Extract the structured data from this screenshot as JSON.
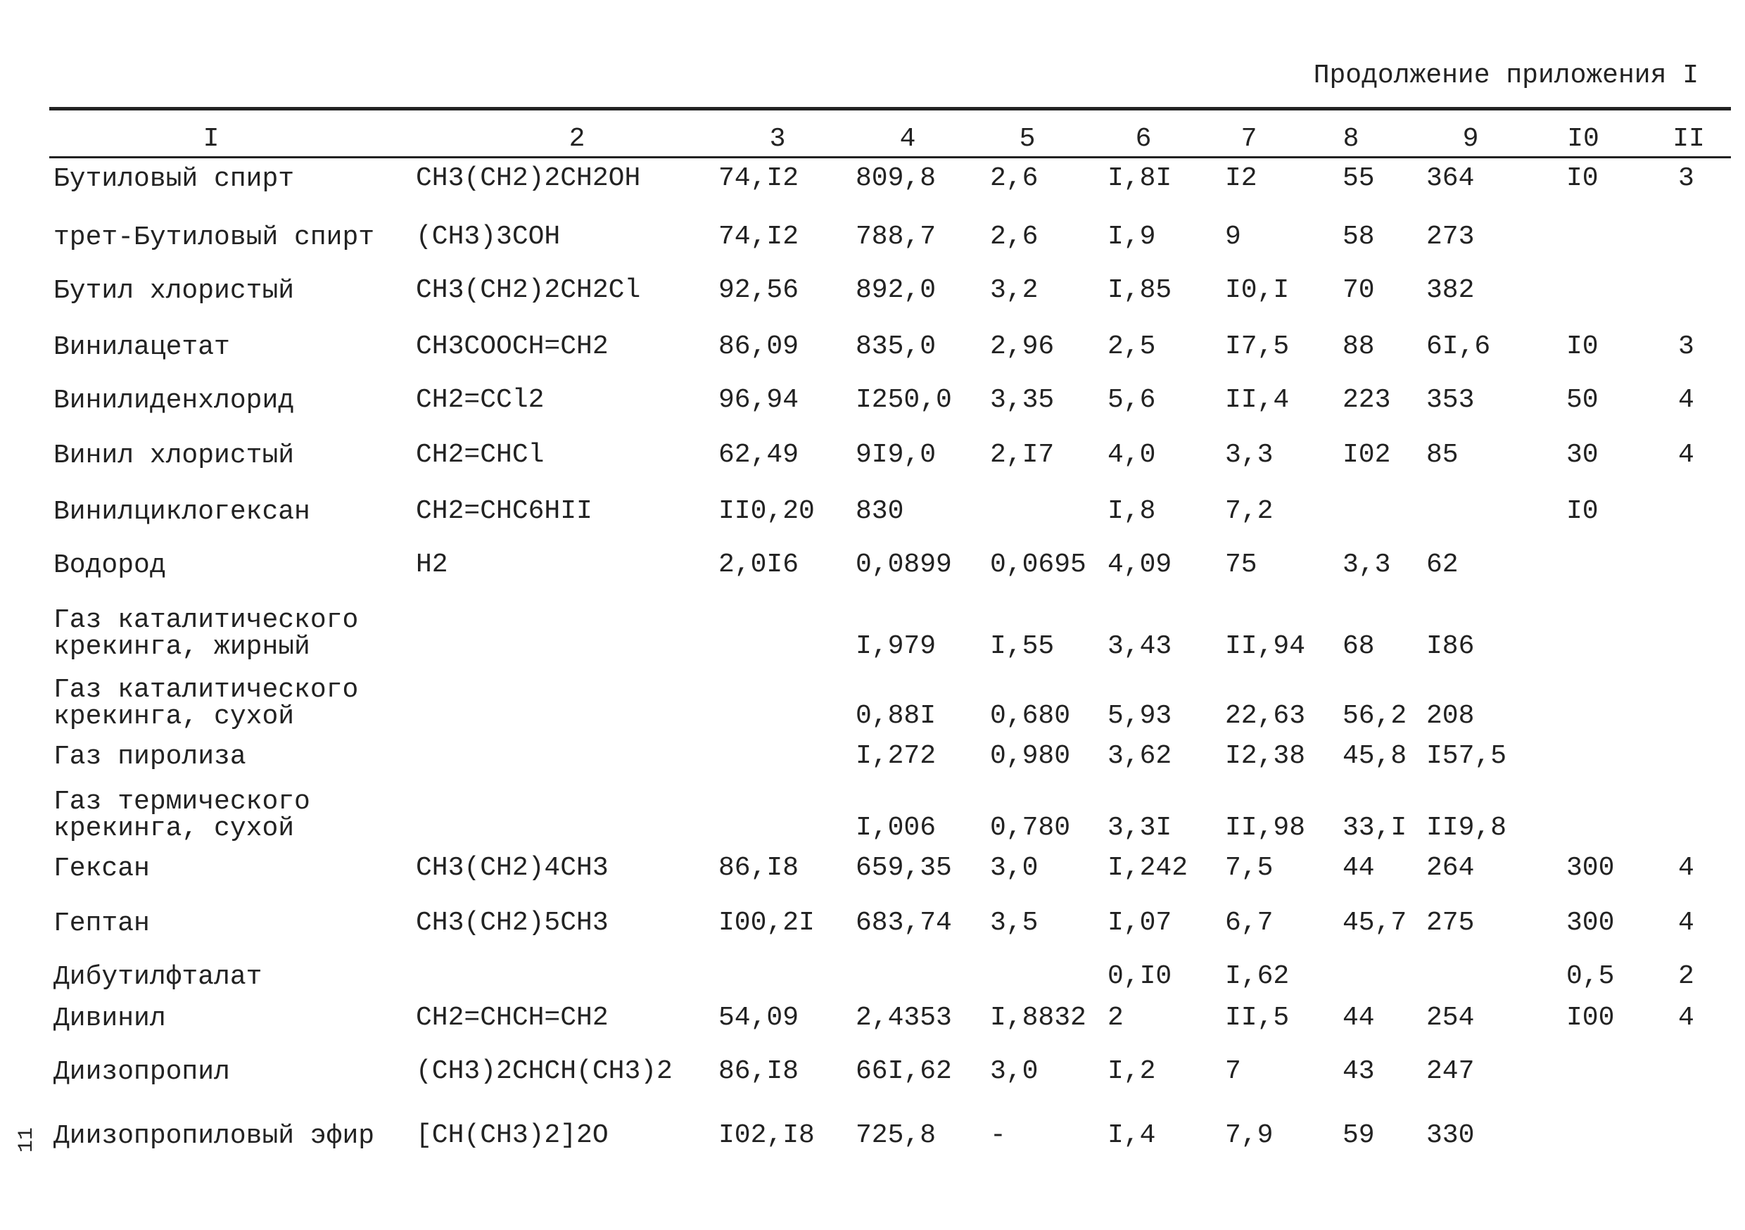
{
  "header": {
    "title": "Продолжение приложения I"
  },
  "table": {
    "columns": [
      "I",
      "2",
      "3",
      "4",
      "5",
      "6",
      "7",
      "8",
      "9",
      "I0",
      "II"
    ],
    "rows": [
      [
        "Бутиловый спирт",
        "CH3(CH2)2CH2OH",
        "74,I2",
        "809,8",
        "2,6",
        "I,8I",
        "I2",
        "55",
        "364",
        "I0",
        "3"
      ],
      [
        "трет-Бутиловый спирт",
        "(CH3)3COH",
        "74,I2",
        "788,7",
        "2,6",
        "I,9",
        "9",
        "58",
        "273",
        null,
        null
      ],
      [
        "Бутил хлористый",
        "CH3(CH2)2CH2Cl",
        "92,56",
        "892,0",
        "3,2",
        "I,85",
        "I0,I",
        "70",
        "382",
        null,
        null
      ],
      [
        "Винилацетат",
        "CH3COOCH=CH2",
        "86,09",
        "835,0",
        "2,96",
        "2,5",
        "I7,5",
        "88",
        "6I,6",
        "I0",
        "3"
      ],
      [
        "Винилиденхлорид",
        "CH2=CCl2",
        "96,94",
        "I250,0",
        "3,35",
        "5,6",
        "II,4",
        "223",
        "353",
        "50",
        "4"
      ],
      [
        "Винил хлористый",
        "CH2=CHCl",
        "62,49",
        "9I9,0",
        "2,I7",
        "4,0",
        "3,3",
        "I02",
        "85",
        "30",
        "4"
      ],
      [
        "Винилциклогексан",
        "CH2=CHC6HII",
        "II0,20",
        "830",
        null,
        "I,8",
        "7,2",
        null,
        null,
        "I0",
        null
      ],
      [
        "Водород",
        "H2",
        "2,0I6",
        "0,0899",
        "0,0695",
        "4,09",
        "75",
        "3,3",
        "62",
        null,
        null
      ],
      [
        "Газ каталитического крекинга, жирный",
        null,
        null,
        "I,979",
        "I,55",
        "3,43",
        "II,94",
        "68",
        "I86",
        null,
        null
      ],
      [
        "Газ каталитического крекинга, сухой",
        null,
        null,
        "0,88I",
        "0,680",
        "5,93",
        "22,63",
        "56,2",
        "208",
        null,
        null
      ],
      [
        "Газ пиролиза",
        null,
        null,
        "I,272",
        "0,980",
        "3,62",
        "I2,38",
        "45,8",
        "I57,5",
        null,
        null
      ],
      [
        "Газ термического крекинга, сухой",
        null,
        null,
        "I,006",
        "0,780",
        "3,3I",
        "II,98",
        "33,I",
        "II9,8",
        null,
        null
      ],
      [
        "Гексан",
        "CH3(CH2)4CH3",
        "86,I8",
        "659,35",
        "3,0",
        "I,242",
        "7,5",
        "44",
        "264",
        "300",
        "4"
      ],
      [
        "Гептан",
        "CH3(CH2)5CH3",
        "I00,2I",
        "683,74",
        "3,5",
        "I,07",
        "6,7",
        "45,7",
        "275",
        "300",
        "4"
      ],
      [
        "Дибутилфталат",
        null,
        null,
        null,
        null,
        "0,I0",
        "I,62",
        null,
        null,
        "0,5",
        "2"
      ],
      [
        "Дивинил",
        "CH2=CHCH=CH2",
        "54,09",
        "2,4353",
        "I,8832",
        "2",
        "II,5",
        "44",
        "254",
        "I00",
        "4"
      ],
      [
        "Диизопропил",
        "(CH3)2CHCH(CH3)2",
        "86,I8",
        "66I,62",
        "3,0",
        "I,2",
        "7",
        "43",
        "247",
        null,
        null
      ],
      [
        "Диизопропиловый эфир",
        "[CH(CH3)2]2O",
        "I02,I8",
        "725,8",
        "-",
        "I,4",
        "7,9",
        "59",
        "330",
        null,
        null
      ]
    ]
  },
  "page_number": "11"
}
